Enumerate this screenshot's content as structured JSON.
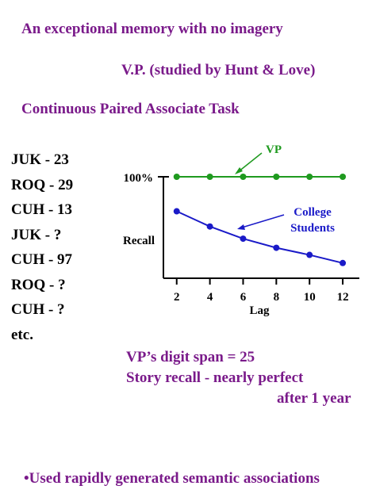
{
  "slide": {
    "title": "An exceptional memory with no imagery",
    "subject": "V.P. (studied by Hunt & Love)",
    "task": "Continuous Paired Associate Task",
    "pairs": [
      "JUK - 23",
      "ROQ - 29",
      "CUH - 13",
      "JUK - ?",
      "CUH - 97",
      "ROQ - ?",
      "CUH - ?",
      "etc."
    ],
    "facts": {
      "digit_span": "VP’s digit span = 25",
      "story_recall_line1": "Story recall - nearly perfect",
      "story_recall_line2": "after 1 year"
    },
    "footer": "•Used rapidly generated semantic associations"
  },
  "colors": {
    "title": "#7a1a8a",
    "vp_series": "#1f9a1f",
    "college_series": "#1a1ac8",
    "axis": "#000000"
  },
  "chart_data": {
    "type": "line",
    "xlabel": "Lag",
    "ylabel": "Recall",
    "y_top_label": "100%",
    "x": [
      2,
      4,
      6,
      8,
      10,
      12
    ],
    "xticks": [
      "2",
      "4",
      "6",
      "8",
      "10",
      "12"
    ],
    "xlim": [
      1.2,
      13
    ],
    "ylim": [
      0,
      100
    ],
    "series": [
      {
        "name": "VP",
        "label": "VP",
        "values": [
          100,
          100,
          100,
          100,
          100,
          100
        ]
      },
      {
        "name": "College Students",
        "label_lines": [
          "College",
          "Students"
        ],
        "values": [
          66,
          51,
          39,
          30,
          23,
          15
        ]
      }
    ],
    "grid": false
  }
}
